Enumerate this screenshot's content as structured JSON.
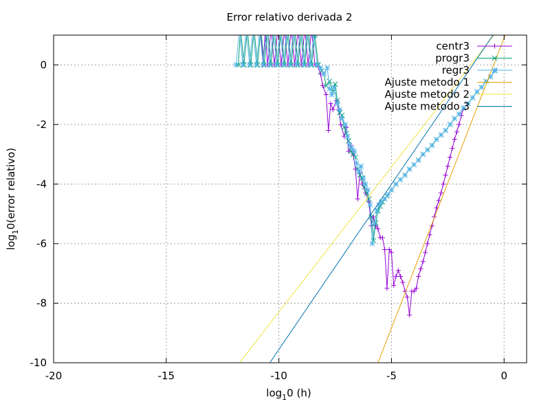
{
  "chart_data": {
    "type": "line",
    "title": "Error relativo derivada 2",
    "xlabel_parts": [
      "log",
      "1",
      "0 (h)"
    ],
    "ylabel_parts": [
      "log",
      "1",
      "0(error relativo)"
    ],
    "xlim": [
      -20,
      1
    ],
    "ylim": [
      -10,
      1
    ],
    "xticks": [
      -20,
      -15,
      -10,
      -5,
      0
    ],
    "yticks": [
      -10,
      -8,
      -6,
      -4,
      -2,
      0
    ],
    "xtick_labels": [
      "-20",
      "-15",
      "-10",
      "-5",
      "0"
    ],
    "ytick_labels": [
      "-10",
      "-8",
      "-6",
      "-4",
      "-2",
      "0"
    ],
    "grid": true,
    "legend_position": "top-right",
    "series": [
      {
        "name": "centr3",
        "color": "#9400d3",
        "marker": "plus",
        "points": [
          [
            -10.8,
            1.2
          ],
          [
            -10.7,
            0
          ],
          [
            -10.6,
            1.2
          ],
          [
            -10.5,
            0
          ],
          [
            -10.35,
            1.2
          ],
          [
            -10.2,
            0
          ],
          [
            -10.05,
            1.2
          ],
          [
            -9.9,
            0
          ],
          [
            -9.75,
            1.2
          ],
          [
            -9.6,
            0
          ],
          [
            -9.45,
            1.2
          ],
          [
            -9.3,
            0
          ],
          [
            -9.15,
            1.2
          ],
          [
            -9.0,
            0
          ],
          [
            -8.85,
            1.2
          ],
          [
            -8.7,
            0
          ],
          [
            -8.55,
            1.2
          ],
          [
            -8.4,
            0
          ],
          [
            -8.3,
            0
          ],
          [
            -8.15,
            -0.3
          ],
          [
            -8.05,
            -0.7
          ],
          [
            -7.9,
            -1.0
          ],
          [
            -7.8,
            -2.2
          ],
          [
            -7.7,
            -1.3
          ],
          [
            -7.6,
            -1.5
          ],
          [
            -7.45,
            -1.2
          ],
          [
            -7.35,
            -1.5
          ],
          [
            -7.25,
            -2.0
          ],
          [
            -7.1,
            -2.4
          ],
          [
            -7.0,
            -2.1
          ],
          [
            -6.9,
            -2.9
          ],
          [
            -6.8,
            -2.7
          ],
          [
            -6.7,
            -3.0
          ],
          [
            -6.6,
            -3.5
          ],
          [
            -6.5,
            -4.5
          ],
          [
            -6.4,
            -3.6
          ],
          [
            -6.3,
            -4.0
          ],
          [
            -6.15,
            -4.3
          ],
          [
            -6.0,
            -4.6
          ],
          [
            -5.9,
            -5.4
          ],
          [
            -5.8,
            -5.1
          ],
          [
            -5.7,
            -5.4
          ],
          [
            -5.6,
            -5.5
          ],
          [
            -5.5,
            -5.8
          ],
          [
            -5.4,
            -5.8
          ],
          [
            -5.3,
            -6.2
          ],
          [
            -5.2,
            -7.5
          ],
          [
            -5.1,
            -6.2
          ],
          [
            -5.0,
            -6.3
          ],
          [
            -4.9,
            -7.4
          ],
          [
            -4.8,
            -7.1
          ],
          [
            -4.7,
            -6.9
          ],
          [
            -4.6,
            -7.1
          ],
          [
            -4.5,
            -7.3
          ],
          [
            -4.4,
            -7.6
          ],
          [
            -4.3,
            -7.8
          ],
          [
            -4.2,
            -8.4
          ],
          [
            -4.1,
            -7.6
          ],
          [
            -4.0,
            -7.6
          ],
          [
            -3.9,
            -7.5
          ],
          [
            -3.8,
            -7.1
          ],
          [
            -3.7,
            -6.85
          ],
          [
            -3.6,
            -6.6
          ],
          [
            -3.5,
            -6.3
          ],
          [
            -3.4,
            -6.0
          ],
          [
            -3.3,
            -5.7
          ],
          [
            -3.2,
            -5.4
          ],
          [
            -3.1,
            -5.1
          ],
          [
            -3.0,
            -4.8
          ],
          [
            -2.9,
            -4.55
          ],
          [
            -2.8,
            -4.3
          ],
          [
            -2.7,
            -4.0
          ],
          [
            -2.6,
            -3.7
          ],
          [
            -2.5,
            -3.4
          ],
          [
            -2.4,
            -3.1
          ],
          [
            -2.3,
            -2.8
          ],
          [
            -2.2,
            -2.5
          ],
          [
            -2.1,
            -2.25
          ],
          [
            -2.0,
            -2.0
          ],
          [
            -1.9,
            -1.7
          ],
          [
            -1.8,
            -1.45
          ]
        ]
      },
      {
        "name": "progr3",
        "color": "#009e73",
        "marker": "x",
        "points": [
          [
            -11.8,
            0
          ],
          [
            -11.7,
            1.2
          ],
          [
            -11.55,
            0
          ],
          [
            -11.4,
            1.2
          ],
          [
            -11.25,
            0
          ],
          [
            -11.1,
            1.2
          ],
          [
            -10.95,
            0
          ],
          [
            -10.8,
            1.2
          ],
          [
            -10.65,
            0
          ],
          [
            -10.5,
            1.2
          ],
          [
            -10.35,
            0
          ],
          [
            -10.2,
            1.2
          ],
          [
            -10.05,
            0
          ],
          [
            -9.9,
            1.2
          ],
          [
            -9.75,
            0
          ],
          [
            -9.6,
            1.2
          ],
          [
            -9.45,
            0
          ],
          [
            -9.3,
            1.2
          ],
          [
            -9.15,
            0
          ],
          [
            -9.0,
            1.2
          ],
          [
            -8.85,
            0
          ],
          [
            -8.7,
            1.2
          ],
          [
            -8.55,
            0
          ],
          [
            -8.4,
            1.0
          ],
          [
            -8.25,
            0
          ],
          [
            -8.1,
            -0.2
          ],
          [
            -8.0,
            -0.3
          ],
          [
            -7.9,
            -0.7
          ],
          [
            -7.75,
            -0.55
          ],
          [
            -7.6,
            -0.9
          ],
          [
            -7.5,
            -0.65
          ],
          [
            -7.4,
            -1.2
          ],
          [
            -7.3,
            -1.6
          ],
          [
            -7.2,
            -1.7
          ],
          [
            -7.1,
            -2.1
          ],
          [
            -7.0,
            -2.3
          ],
          [
            -6.9,
            -2.55
          ],
          [
            -6.8,
            -2.9
          ],
          [
            -6.7,
            -3.0
          ],
          [
            -6.6,
            -3.1
          ],
          [
            -6.5,
            -3.5
          ],
          [
            -6.4,
            -3.7
          ],
          [
            -6.3,
            -3.8
          ],
          [
            -6.2,
            -4.1
          ],
          [
            -6.1,
            -4.3
          ],
          [
            -6.0,
            -4.5
          ],
          [
            -5.9,
            -5.1
          ],
          [
            -5.8,
            -5.9
          ],
          [
            -5.7,
            -5.3
          ],
          [
            -5.6,
            -4.9
          ],
          [
            -5.5,
            -4.75
          ],
          [
            -5.4,
            -4.6
          ],
          [
            -5.3,
            -4.5
          ],
          [
            -5.2,
            -4.4
          ],
          [
            -5.0,
            -4.2
          ],
          [
            -4.8,
            -4.0
          ],
          [
            -4.6,
            -3.85
          ],
          [
            -4.4,
            -3.7
          ],
          [
            -4.2,
            -3.5
          ],
          [
            -4.0,
            -3.35
          ],
          [
            -3.8,
            -3.2
          ],
          [
            -3.6,
            -3.0
          ],
          [
            -3.4,
            -2.85
          ],
          [
            -3.2,
            -2.7
          ],
          [
            -3.0,
            -2.5
          ],
          [
            -2.8,
            -2.35
          ],
          [
            -2.6,
            -2.2
          ],
          [
            -2.4,
            -2.0
          ],
          [
            -2.2,
            -1.8
          ],
          [
            -2.0,
            -1.65
          ],
          [
            -1.8,
            -1.45
          ],
          [
            -1.6,
            -1.3
          ],
          [
            -1.4,
            -1.1
          ],
          [
            -1.2,
            -0.9
          ],
          [
            -1.0,
            -0.75
          ],
          [
            -0.8,
            -0.55
          ],
          [
            -0.6,
            -0.4
          ],
          [
            -0.4,
            -0.2
          ]
        ]
      },
      {
        "name": "regr3",
        "color": "#56b4e9",
        "marker": "star",
        "points": [
          [
            -11.9,
            0
          ],
          [
            -11.75,
            1.2
          ],
          [
            -11.6,
            0
          ],
          [
            -11.45,
            1.2
          ],
          [
            -11.3,
            0
          ],
          [
            -11.15,
            1.2
          ],
          [
            -11.0,
            0
          ],
          [
            -10.85,
            1.2
          ],
          [
            -10.7,
            0
          ],
          [
            -10.55,
            1.2
          ],
          [
            -10.4,
            0
          ],
          [
            -10.25,
            1.2
          ],
          [
            -10.1,
            0
          ],
          [
            -9.95,
            1.2
          ],
          [
            -9.8,
            0
          ],
          [
            -9.65,
            1.2
          ],
          [
            -9.5,
            0
          ],
          [
            -9.35,
            1.2
          ],
          [
            -9.2,
            0
          ],
          [
            -9.05,
            1.2
          ],
          [
            -8.9,
            0
          ],
          [
            -8.75,
            1.2
          ],
          [
            -8.6,
            0
          ],
          [
            -8.45,
            1.0
          ],
          [
            -8.3,
            0
          ],
          [
            -8.15,
            -0.1
          ],
          [
            -8.0,
            -0.3
          ],
          [
            -7.85,
            -0.1
          ],
          [
            -7.75,
            -0.8
          ],
          [
            -7.65,
            -1.0
          ],
          [
            -7.55,
            -0.75
          ],
          [
            -7.4,
            -1.3
          ],
          [
            -7.3,
            -1.5
          ],
          [
            -7.2,
            -1.8
          ],
          [
            -7.05,
            -2.0
          ],
          [
            -6.95,
            -2.4
          ],
          [
            -6.85,
            -2.7
          ],
          [
            -6.75,
            -2.8
          ],
          [
            -6.65,
            -2.9
          ],
          [
            -6.55,
            -3.3
          ],
          [
            -6.45,
            -3.6
          ],
          [
            -6.35,
            -3.4
          ],
          [
            -6.25,
            -3.8
          ],
          [
            -6.15,
            -4.0
          ],
          [
            -6.05,
            -4.2
          ],
          [
            -5.95,
            -4.7
          ],
          [
            -5.85,
            -6.0
          ],
          [
            -5.75,
            -5.3
          ],
          [
            -5.65,
            -4.9
          ],
          [
            -5.55,
            -4.7
          ],
          [
            -5.45,
            -4.6
          ],
          [
            -5.3,
            -4.5
          ],
          [
            -5.15,
            -4.35
          ],
          [
            -5.0,
            -4.2
          ],
          [
            -4.8,
            -4.0
          ],
          [
            -4.6,
            -3.85
          ],
          [
            -4.4,
            -3.7
          ],
          [
            -4.2,
            -3.5
          ],
          [
            -4.0,
            -3.35
          ],
          [
            -3.8,
            -3.2
          ],
          [
            -3.6,
            -3.0
          ],
          [
            -3.4,
            -2.85
          ],
          [
            -3.2,
            -2.7
          ],
          [
            -3.0,
            -2.5
          ],
          [
            -2.8,
            -2.35
          ],
          [
            -2.6,
            -2.2
          ],
          [
            -2.4,
            -2.0
          ],
          [
            -2.2,
            -1.8
          ],
          [
            -2.0,
            -1.65
          ],
          [
            -1.8,
            -1.45
          ],
          [
            -1.6,
            -1.3
          ],
          [
            -1.4,
            -1.1
          ],
          [
            -1.2,
            -0.9
          ],
          [
            -1.0,
            -0.75
          ],
          [
            -0.8,
            -0.55
          ],
          [
            -0.6,
            -0.4
          ],
          [
            -0.4,
            -0.2
          ]
        ]
      },
      {
        "name": "Ajuste metodo 1",
        "color": "#e69f00",
        "marker": "none",
        "points": [
          [
            -5.6,
            -10.0
          ],
          [
            0.1,
            1.1
          ]
        ]
      },
      {
        "name": "Ajuste metodo 2",
        "color": "#f0e442",
        "marker": "none",
        "points": [
          [
            -11.75,
            -10.0
          ],
          [
            -0.35,
            1.1
          ]
        ]
      },
      {
        "name": "Ajuste metodo 3",
        "color": "#0072b2",
        "marker": "none",
        "points": [
          [
            -10.4,
            -10.0
          ],
          [
            -0.4,
            1.1
          ]
        ]
      }
    ]
  }
}
